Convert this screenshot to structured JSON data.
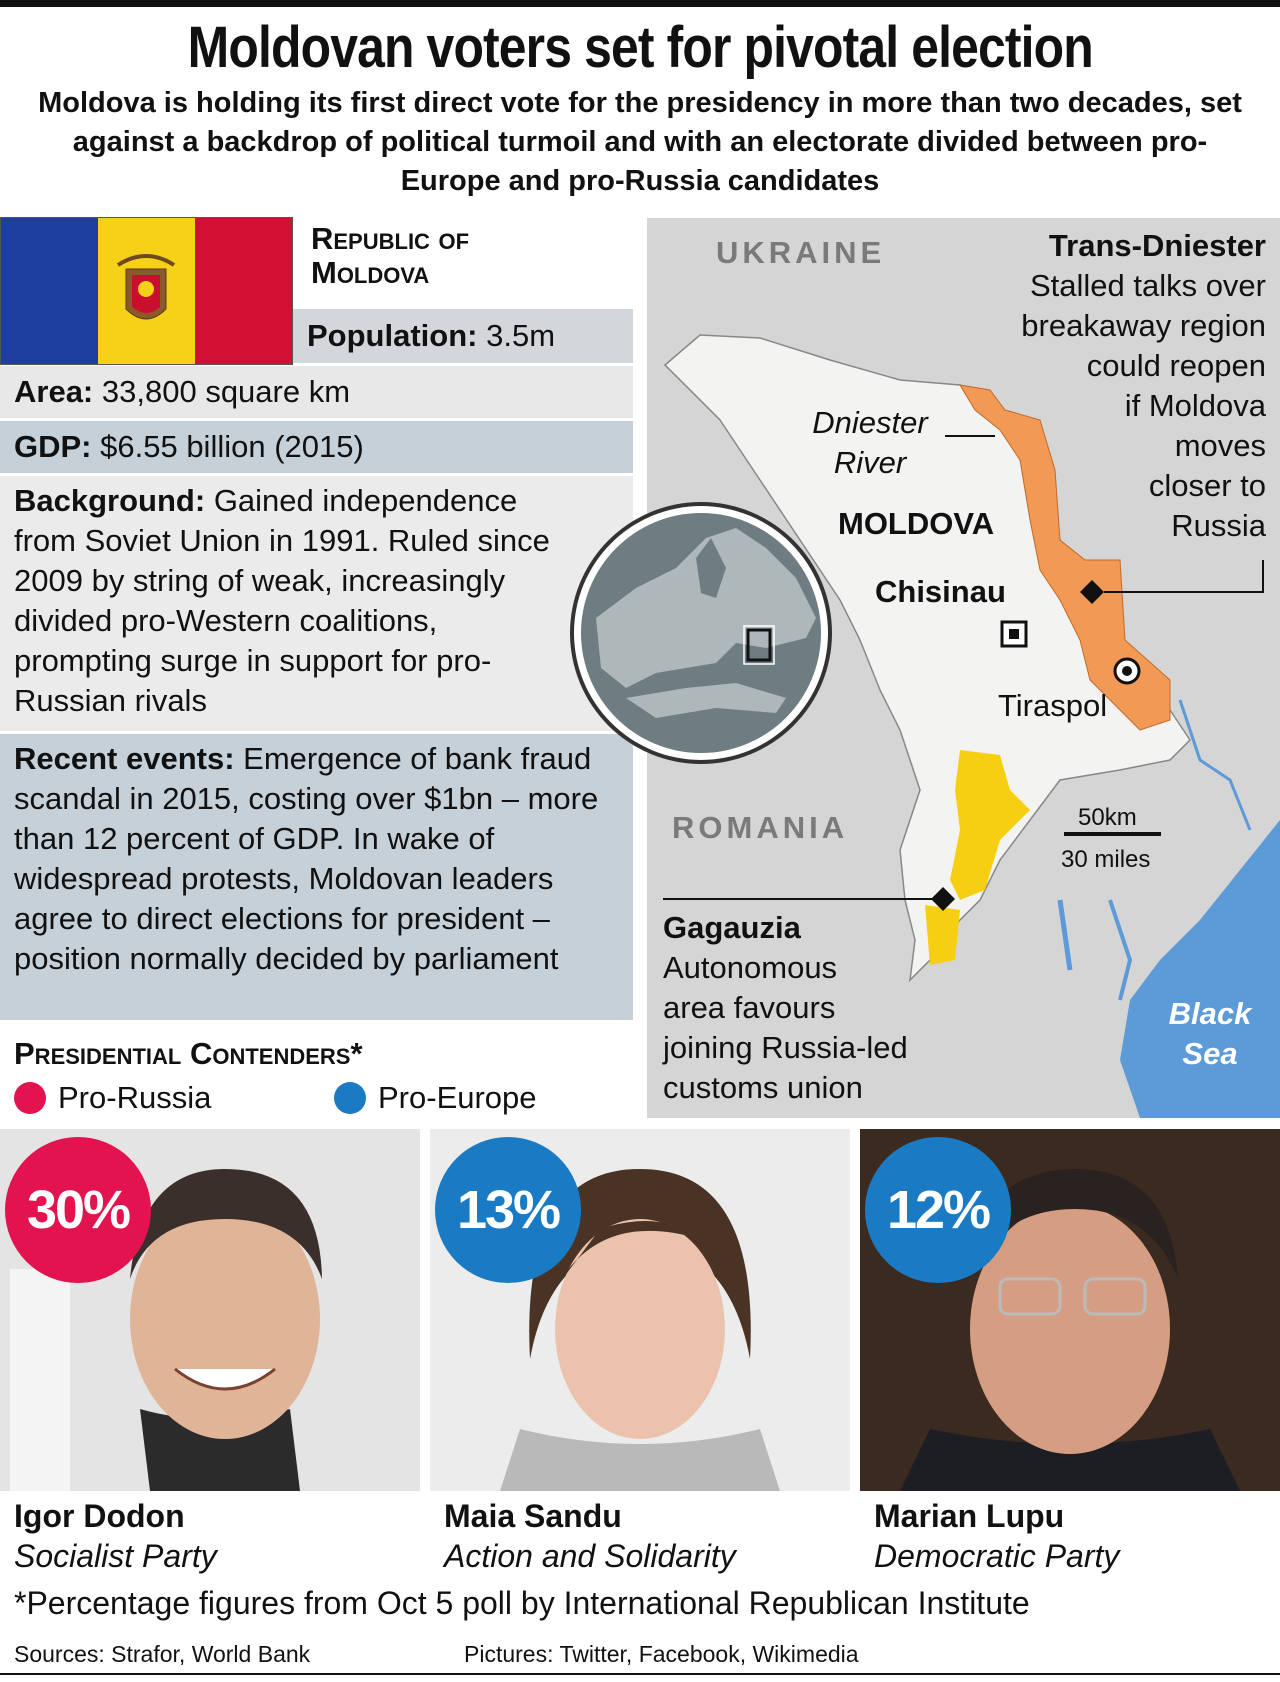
{
  "header": {
    "title": "Moldovan voters set for pivotal election",
    "subtitle": "Moldova is holding its first direct vote for the presidency in more than two decades, set against a backdrop of political turmoil and with an electorate divided between pro-Europe and pro-Russia candidates"
  },
  "country": {
    "name": "Republic of Moldova",
    "facts": [
      {
        "label": "Population:",
        "value": "3.5m"
      },
      {
        "label": "Area:",
        "value": "33,800 square km"
      },
      {
        "label": "GDP:",
        "value": "$6.55 billion (2015)"
      },
      {
        "label": "Background:",
        "value": "Gained independence from Soviet Union in 1991. Ruled since 2009 by string of weak, increasingly divided pro-Western coalitions, prompting surge in support for pro-Russian rivals"
      },
      {
        "label": "Recent events:",
        "value": "Emergence of bank fraud scandal in 2015, costing over $1bn – more than 12 percent of GDP. In wake of widespread protests, Moldovan leaders agree to direct elections for president – position normally decided by parliament"
      }
    ]
  },
  "map": {
    "ukraine": "UKRAINE",
    "romania": "ROMANIA",
    "moldova": "MOLDOVA",
    "river": [
      "Dniester",
      "River"
    ],
    "capital": "Chisinau",
    "city": "Tiraspol",
    "scale_km": "50km",
    "scale_miles": "30 miles",
    "sea": [
      "Black",
      "Sea"
    ],
    "transdniester": {
      "title": "Trans-Dniester",
      "lines": [
        "Stalled talks over",
        "breakaway region",
        "could reopen",
        "if Moldova",
        "moves",
        "closer to",
        "Russia"
      ]
    },
    "gagauzia": {
      "title": "Gagauzia",
      "lines": [
        "Autonomous",
        "area favours",
        "joining Russia-led",
        "customs union"
      ]
    }
  },
  "contenders": {
    "title": "Presidential Contenders*",
    "legend": [
      {
        "name": "Pro-Russia",
        "color": "#e2134f"
      },
      {
        "name": "Pro-Europe",
        "color": "#1a7bc4"
      }
    ],
    "candidates": [
      {
        "percent": "30%",
        "name": "Igor Dodon",
        "party": "Socialist Party",
        "color": "#e2134f"
      },
      {
        "percent": "13%",
        "name": "Maia Sandu",
        "party": "Action and Solidarity",
        "color": "#1a7bc4"
      },
      {
        "percent": "12%",
        "name": "Marian Lupu",
        "party": "Democratic Party",
        "color": "#1a7bc4"
      }
    ]
  },
  "footnote": "*Percentage figures from Oct 5 poll by International Republican Institute",
  "sources": "Sources: Strafor, World Bank",
  "pictures": "Pictures: Twitter, Facebook, Wikimedia"
}
